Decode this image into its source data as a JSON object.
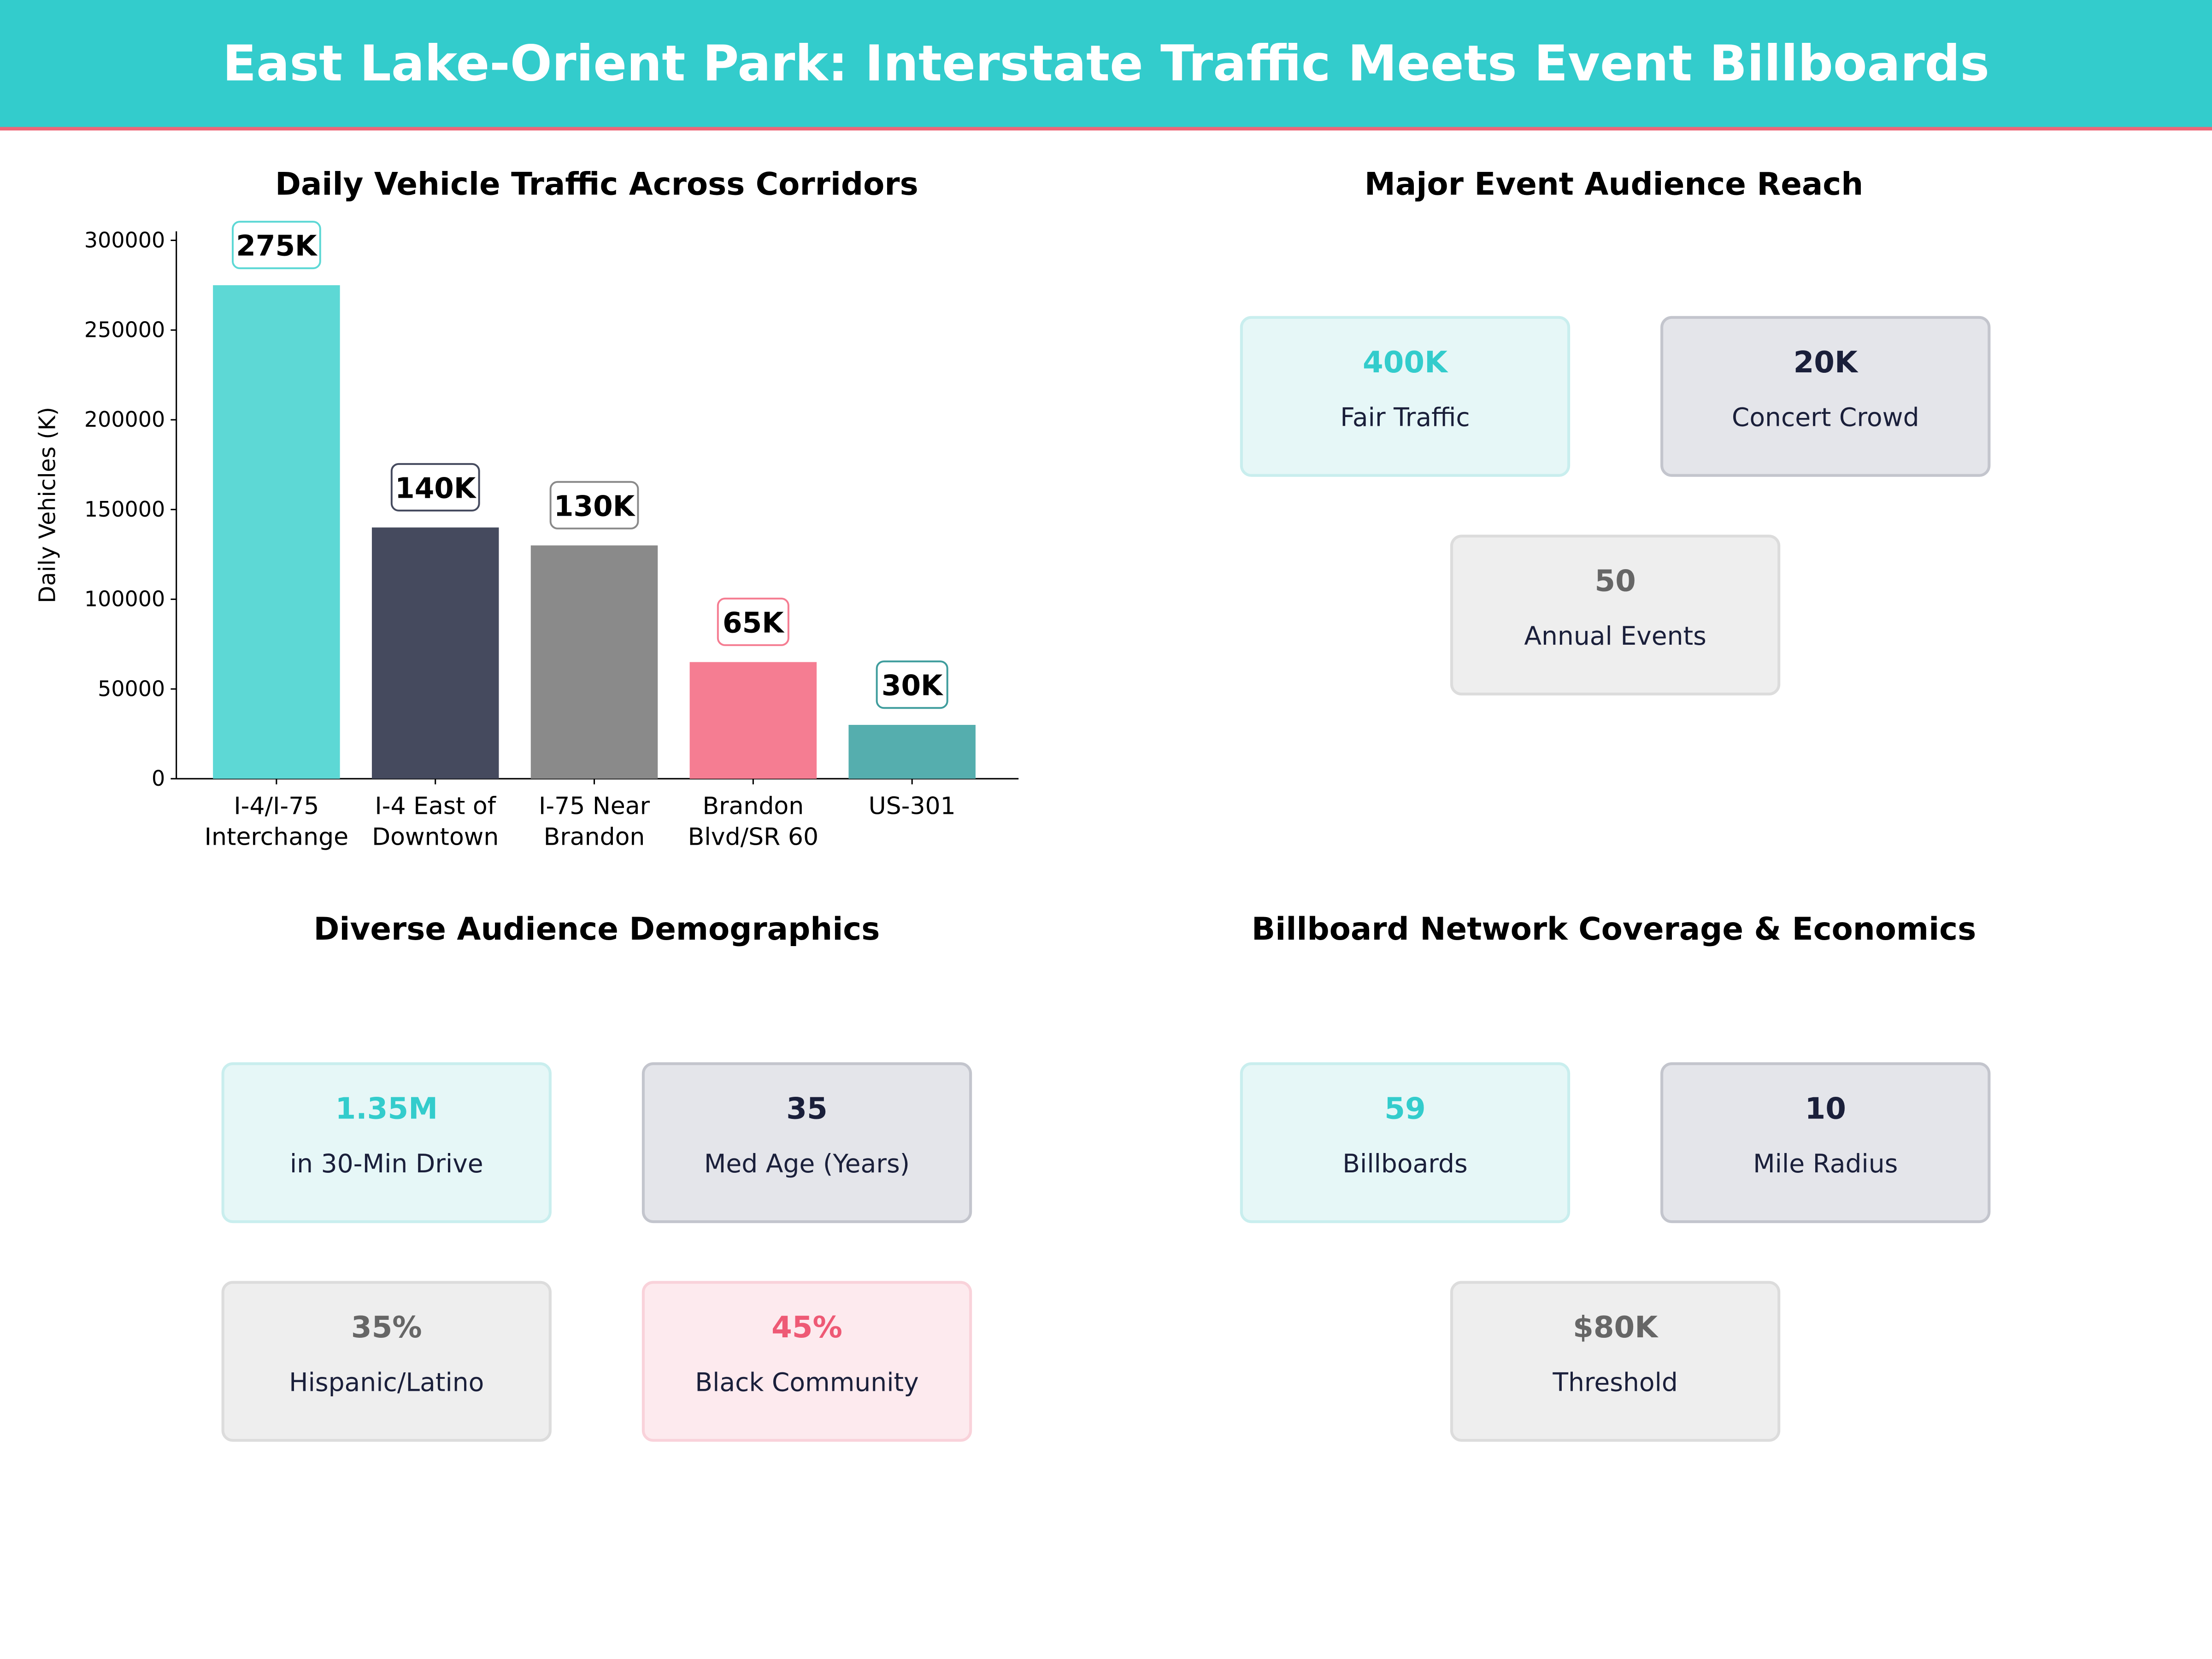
{
  "header": {
    "title": "East Lake-Orient Park: Interstate Traffic Meets Event Billboards",
    "bg_color": "#33cccc",
    "rule_color": "#ee6677"
  },
  "chart_data": {
    "type": "bar",
    "title": "Daily Vehicle Traffic Across Corridors",
    "xlabel": "",
    "ylabel": "Daily Vehicles (K)",
    "categories": [
      "I-4/I-75\nInterchange",
      "I-4 East of\nDowntown",
      "I-75 Near\nBrandon",
      "Brandon\nBlvd/SR 60",
      "US-301"
    ],
    "values": [
      275000,
      140000,
      130000,
      65000,
      30000
    ],
    "data_labels": [
      "275K",
      "140K",
      "130K",
      "65K",
      "30K"
    ],
    "colors": [
      "#5dd8d5",
      "#454a5e",
      "#8a8a8a",
      "#f57d92",
      "#55aeae"
    ],
    "label_border_colors": [
      "#5dd8d5",
      "#454a5e",
      "#8a8a8a",
      "#f57d92",
      "#3f9d9d"
    ],
    "ylim": [
      0,
      305000
    ],
    "yticks": [
      0,
      50000,
      100000,
      150000,
      200000,
      250000,
      300000
    ],
    "grid": false
  },
  "panels": [
    {
      "title": "Major Event Audience Reach",
      "cards": [
        {
          "value": "400K",
          "label": "Fair Traffic",
          "theme": "teal"
        },
        {
          "value": "20K",
          "label": "Concert Crowd",
          "theme": "navy"
        },
        {
          "value": "50",
          "label": "Annual Events",
          "theme": "gray"
        }
      ]
    },
    {
      "title": "Diverse Audience Demographics",
      "cards": [
        {
          "value": "1.35M",
          "label": "in 30-Min Drive",
          "theme": "teal"
        },
        {
          "value": "35",
          "label": "Med Age (Years)",
          "theme": "navy"
        },
        {
          "value": "35%",
          "label": "Hispanic/Latino",
          "theme": "gray"
        },
        {
          "value": "45%",
          "label": "Black Community",
          "theme": "pink"
        }
      ]
    },
    {
      "title": "Billboard Network Coverage & Economics",
      "cards": [
        {
          "value": "59",
          "label": "Billboards",
          "theme": "teal"
        },
        {
          "value": "10",
          "label": "Mile Radius",
          "theme": "navy"
        },
        {
          "value": "$80K",
          "label": "Threshold",
          "theme": "gray"
        }
      ]
    }
  ],
  "themes": {
    "teal": {
      "bg": "#e6f7f7",
      "border": "#c9eeee",
      "value": "#33cccc"
    },
    "navy": {
      "bg": "#e4e5ea",
      "border": "#c3c5cd",
      "value": "#1a1f3a"
    },
    "gray": {
      "bg": "#eeeeee",
      "border": "#dcdcdc",
      "value": "#666666"
    },
    "pink": {
      "bg": "#fdeaee",
      "border": "#f9d2da",
      "value": "#ee5a75"
    }
  }
}
